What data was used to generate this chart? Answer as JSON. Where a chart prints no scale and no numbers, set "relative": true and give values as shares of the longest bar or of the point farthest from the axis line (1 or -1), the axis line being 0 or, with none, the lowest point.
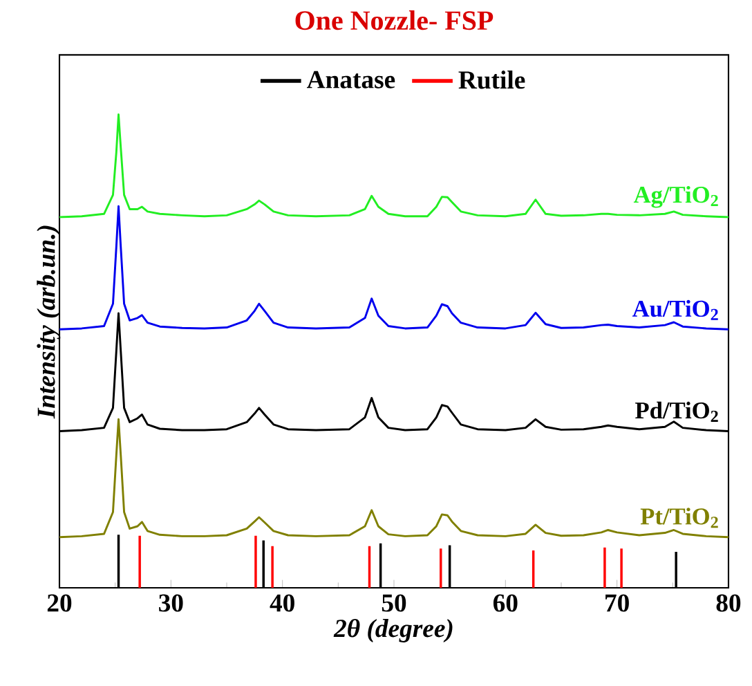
{
  "chart_data": {
    "type": "line",
    "title": "One Nozzle- FSP",
    "xlabel": "*2θ (degree)*",
    "ylabel": "*Intensity (arb.un.)*",
    "relative": true,
    "xlim": [
      20,
      80
    ],
    "xticks": [
      20,
      30,
      40,
      50,
      60,
      70,
      80
    ],
    "legend": "top",
    "marker": "none",
    "line_style": "solid",
    "x": [
      20,
      22,
      24,
      24.8,
      25.1,
      25.3,
      25.5,
      25.8,
      26.3,
      27.0,
      27.4,
      27.9,
      29,
      31,
      33,
      35,
      36.8,
      37.5,
      37.9,
      38.4,
      39.2,
      40.5,
      43,
      46,
      47.4,
      48.0,
      48.6,
      49.5,
      51,
      53,
      53.8,
      54.3,
      54.8,
      55.2,
      56,
      57.5,
      60,
      61.8,
      62.7,
      63.6,
      65,
      67,
      68.6,
      69.2,
      70,
      72,
      74.3,
      75.1,
      75.9,
      78,
      80
    ],
    "series": [
      {
        "name": "Ag/TiO$_{2}$",
        "color": "#22ee22",
        "values": [
          0.783,
          0.785,
          0.79,
          0.83,
          0.92,
          1.0,
          0.93,
          0.83,
          0.8,
          0.8,
          0.805,
          0.795,
          0.79,
          0.787,
          0.785,
          0.787,
          0.8,
          0.81,
          0.818,
          0.81,
          0.795,
          0.787,
          0.785,
          0.787,
          0.8,
          0.828,
          0.805,
          0.79,
          0.785,
          0.785,
          0.805,
          0.826,
          0.825,
          0.815,
          0.795,
          0.787,
          0.785,
          0.79,
          0.82,
          0.79,
          0.786,
          0.787,
          0.79,
          0.79,
          0.788,
          0.787,
          0.79,
          0.795,
          0.788,
          0.785,
          0.783
        ]
      },
      {
        "name": "Au/TiO$_{2}$",
        "color": "#0000ee",
        "values": [
          0.546,
          0.548,
          0.553,
          0.6,
          0.72,
          0.806,
          0.72,
          0.6,
          0.565,
          0.57,
          0.576,
          0.56,
          0.552,
          0.549,
          0.548,
          0.55,
          0.565,
          0.585,
          0.6,
          0.585,
          0.56,
          0.55,
          0.548,
          0.55,
          0.57,
          0.611,
          0.575,
          0.553,
          0.548,
          0.55,
          0.575,
          0.599,
          0.595,
          0.58,
          0.56,
          0.55,
          0.548,
          0.555,
          0.581,
          0.557,
          0.549,
          0.55,
          0.555,
          0.556,
          0.553,
          0.55,
          0.555,
          0.561,
          0.552,
          0.548,
          0.546
        ]
      },
      {
        "name": "Pd/TiO$_{2}$",
        "color": "#000000",
        "values": [
          0.331,
          0.333,
          0.338,
          0.38,
          0.5,
          0.58,
          0.5,
          0.38,
          0.35,
          0.358,
          0.366,
          0.345,
          0.336,
          0.333,
          0.333,
          0.335,
          0.35,
          0.368,
          0.38,
          0.366,
          0.345,
          0.335,
          0.333,
          0.335,
          0.36,
          0.401,
          0.36,
          0.338,
          0.333,
          0.335,
          0.36,
          0.386,
          0.383,
          0.37,
          0.345,
          0.335,
          0.333,
          0.338,
          0.356,
          0.34,
          0.334,
          0.335,
          0.34,
          0.343,
          0.34,
          0.335,
          0.34,
          0.351,
          0.338,
          0.333,
          0.331
        ]
      },
      {
        "name": "Pt/TiO$_{2}$",
        "color": "#808000",
        "values": [
          0.107,
          0.109,
          0.114,
          0.16,
          0.28,
          0.356,
          0.28,
          0.16,
          0.125,
          0.13,
          0.139,
          0.12,
          0.112,
          0.109,
          0.109,
          0.111,
          0.125,
          0.14,
          0.149,
          0.138,
          0.12,
          0.111,
          0.109,
          0.111,
          0.13,
          0.164,
          0.13,
          0.113,
          0.109,
          0.111,
          0.13,
          0.155,
          0.153,
          0.14,
          0.12,
          0.111,
          0.109,
          0.114,
          0.133,
          0.116,
          0.11,
          0.111,
          0.117,
          0.122,
          0.117,
          0.111,
          0.116,
          0.122,
          0.114,
          0.109,
          0.107
        ]
      },
      {
        "name": "Anatase",
        "type": "bar",
        "color": "#000000",
        "x": [
          25.3,
          38.3,
          48.8,
          55.0,
          75.3
        ],
        "values": [
          0.112,
          0.1,
          0.094,
          0.09,
          0.076
        ]
      },
      {
        "name": "Rutile",
        "type": "bar",
        "color": "#ff0000",
        "x": [
          27.2,
          37.6,
          39.1,
          47.8,
          54.2,
          62.5,
          68.9,
          70.4
        ],
        "values": [
          0.11,
          0.11,
          0.088,
          0.088,
          0.083,
          0.079,
          0.085,
          0.083
        ]
      }
    ]
  }
}
